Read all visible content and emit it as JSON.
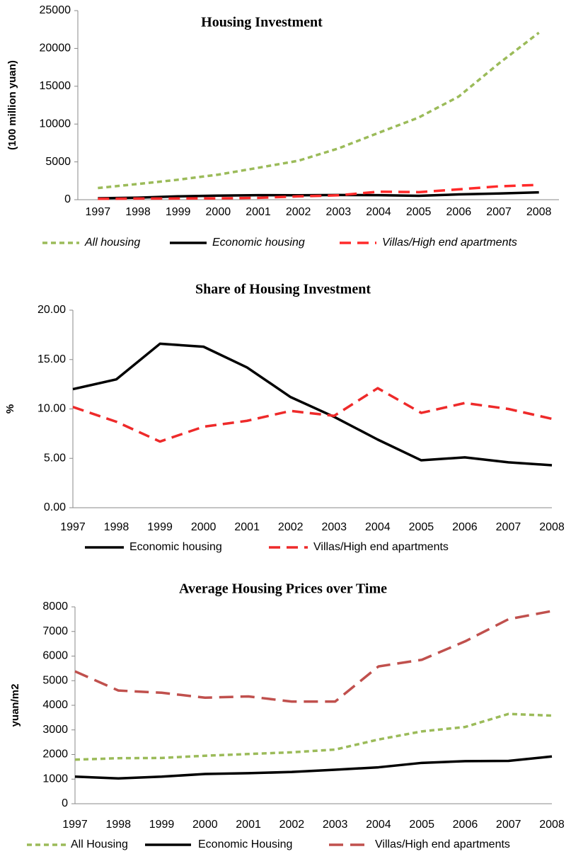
{
  "chart_data": [
    {
      "type": "line",
      "title": "Housing Investment",
      "ylabel": "(100 million yuan)",
      "categories": [
        "1997",
        "1998",
        "1999",
        "2000",
        "2001",
        "2002",
        "2003",
        "2004",
        "2005",
        "2006",
        "2007",
        "2008"
      ],
      "series": [
        {
          "name": "All housing",
          "color": "#9bbb59",
          "values": [
            1540,
            2080,
            2640,
            3310,
            4220,
            5150,
            6780,
            8840,
            10860,
            13640,
            18010,
            22080
          ]
        },
        {
          "name": "Economic housing",
          "color": "#000000",
          "values": [
            185,
            270,
            440,
            540,
            600,
            590,
            620,
            600,
            520,
            700,
            820,
            970
          ]
        },
        {
          "name": "Villas/High end apartments",
          "color": "#ff2a2a",
          "values": [
            120,
            150,
            160,
            180,
            240,
            440,
            580,
            1060,
            1000,
            1370,
            1770,
            1960
          ]
        }
      ],
      "ylim": [
        0,
        25000
      ],
      "yticks": [
        0,
        5000,
        10000,
        15000,
        20000,
        25000
      ],
      "grid": false
    },
    {
      "type": "line",
      "title": "Share of Housing Investment",
      "ylabel": "%",
      "categories": [
        "1997",
        "1998",
        "1999",
        "2000",
        "2001",
        "2002",
        "2003",
        "2004",
        "2005",
        "2006",
        "2007",
        "2008"
      ],
      "series": [
        {
          "name": "Economic housing",
          "color": "#000000",
          "values": [
            12.0,
            13.0,
            16.6,
            16.3,
            14.2,
            11.2,
            9.2,
            6.9,
            4.8,
            5.1,
            4.6,
            4.3
          ]
        },
        {
          "name": "Villas/High end apartments",
          "color": "#ee2a2a",
          "values": [
            10.2,
            8.7,
            6.7,
            8.2,
            8.8,
            9.8,
            9.3,
            12.1,
            9.6,
            10.6,
            10.0,
            9.0
          ]
        }
      ],
      "ylim": [
        0,
        20
      ],
      "yticks": [
        {
          "value": 0,
          "label": "0.00"
        },
        {
          "value": 5,
          "label": "5.00"
        },
        {
          "value": 10,
          "label": "10.00"
        },
        {
          "value": 15,
          "label": "15.00"
        },
        {
          "value": 20,
          "label": "20.00"
        }
      ],
      "grid": false
    },
    {
      "type": "line",
      "title": "Average Housing Prices over Time",
      "ylabel": "yuan/m2",
      "categories": [
        "1997",
        "1998",
        "1999",
        "2000",
        "2001",
        "2002",
        "2003",
        "2004",
        "2005",
        "2006",
        "2007",
        "2008"
      ],
      "series": [
        {
          "name": "All Housing",
          "color": "#9bbb59",
          "values": [
            1790,
            1850,
            1860,
            1950,
            2020,
            2090,
            2200,
            2610,
            2940,
            3120,
            3650,
            3580
          ]
        },
        {
          "name": "Economic Housing",
          "color": "#000000",
          "values": [
            1100,
            1030,
            1100,
            1210,
            1240,
            1290,
            1380,
            1480,
            1660,
            1730,
            1740,
            1920
          ]
        },
        {
          "name": "Villas/High end apartments",
          "color": "#c0504d",
          "values": [
            5380,
            4600,
            4510,
            4310,
            4360,
            4150,
            4150,
            5580,
            5850,
            6600,
            7500,
            7830
          ]
        }
      ],
      "ylim": [
        0,
        8000
      ],
      "yticks": [
        0,
        1000,
        2000,
        3000,
        4000,
        5000,
        6000,
        7000,
        8000
      ],
      "grid": false
    }
  ]
}
